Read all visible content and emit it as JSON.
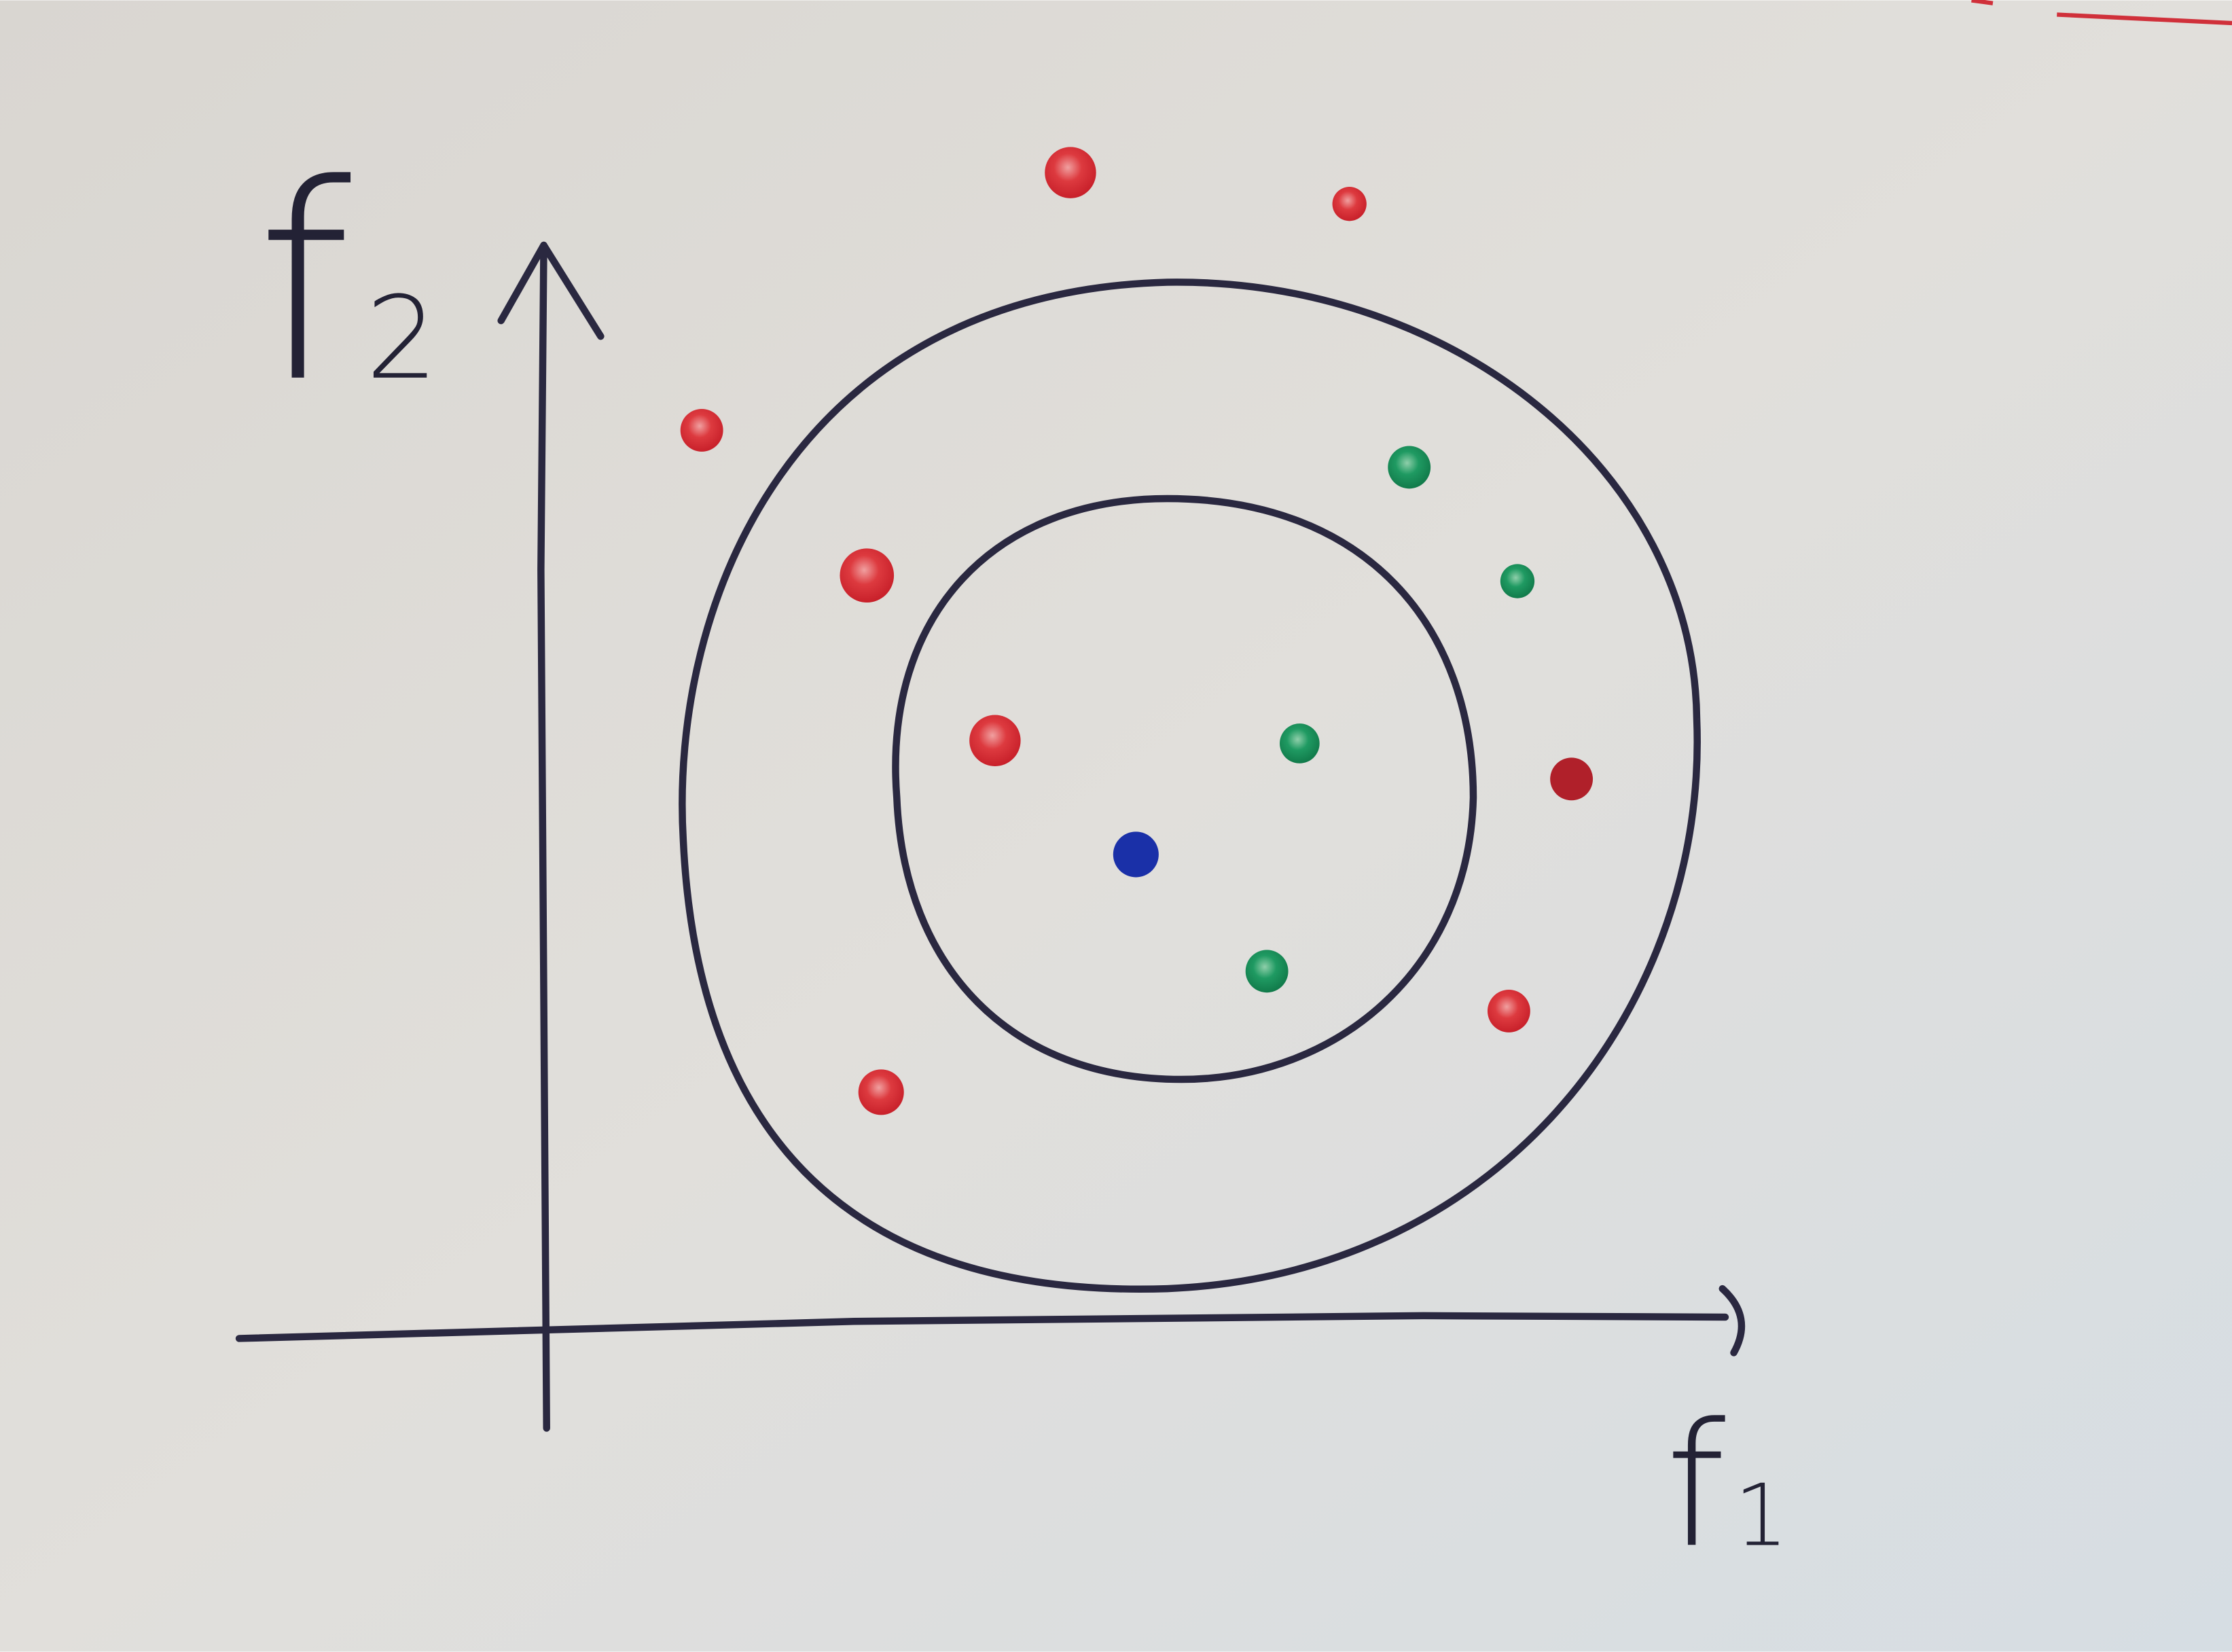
{
  "axes": {
    "y_label": {
      "base": "f",
      "subscript": "2"
    },
    "x_label": {
      "base": "f",
      "subscript": "1"
    }
  }
}
